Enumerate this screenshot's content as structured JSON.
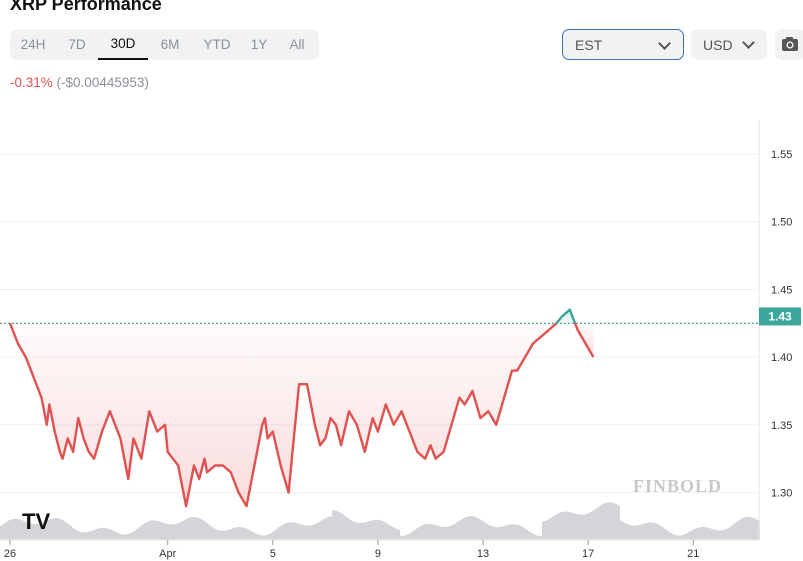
{
  "header": {
    "title": "XRP Performance",
    "ranges": [
      "24H",
      "7D",
      "30D",
      "6M",
      "YTD",
      "1Y",
      "All"
    ],
    "active_range": "30D",
    "timezone": "EST",
    "currency": "USD",
    "change_pct": "-0.31%",
    "change_abs": "(-$0.00445953)"
  },
  "colors": {
    "down": "#e0524f",
    "up": "#3aa79a",
    "volume": "#d4d5d9"
  },
  "icons": [
    "chevron-down-icon",
    "camera-icon"
  ],
  "watermark": "FINBOLD",
  "tv_logo": "TV",
  "chart_data": {
    "type": "line",
    "title": "XRP Performance",
    "xlabel": "",
    "ylabel": "",
    "ylim": [
      1.265,
      1.575
    ],
    "y_ticks": [
      "1.55",
      "1.50",
      "1.45",
      "1.40",
      "1.35",
      "1.30"
    ],
    "y_tick_values": [
      1.55,
      1.5,
      1.45,
      1.4,
      1.35,
      1.3
    ],
    "x_ticks": [
      "26",
      "Apr",
      "5",
      "9",
      "13",
      "17",
      "21"
    ],
    "x_tick_positions": [
      0,
      6,
      10,
      14,
      18,
      22,
      26
    ],
    "x_range": [
      0,
      28.5
    ],
    "baseline": 1.425,
    "current_price_label": "1.43",
    "grid": true,
    "series": [
      {
        "x": [
          0,
          0.3,
          0.6,
          1.0,
          1.2,
          1.4,
          1.5,
          1.7,
          1.9,
          2.0,
          2.2,
          2.4,
          2.6,
          2.8,
          3.0,
          3.2,
          3.5,
          3.8,
          4.2,
          4.4,
          4.5,
          4.7,
          5.0,
          5.3,
          5.6,
          5.9,
          6.0,
          6.2,
          6.4,
          6.5,
          6.7,
          7.0,
          7.2,
          7.4,
          7.5,
          7.8,
          8.1,
          8.4,
          8.7,
          9.0,
          9.3,
          9.6,
          9.7,
          9.8,
          10.0,
          10.3,
          10.6,
          10.8,
          11.0,
          11.3,
          11.6,
          11.8,
          12.0,
          12.2,
          12.4,
          12.6,
          12.9,
          13.2,
          13.5,
          13.8,
          14.0,
          14.3,
          14.6,
          14.9,
          15.2,
          15.5,
          15.8,
          16.0,
          16.2,
          16.5,
          16.8,
          17.1,
          17.3,
          17.6,
          17.9,
          18.2,
          18.5,
          18.8,
          19.1,
          19.3,
          19.6,
          19.9,
          20.2,
          20.5,
          20.8,
          21.0,
          21.3,
          21.6,
          21.9,
          22.2
        ],
        "values": [
          1.425,
          1.41,
          1.4,
          1.38,
          1.37,
          1.35,
          1.365,
          1.345,
          1.33,
          1.325,
          1.34,
          1.33,
          1.355,
          1.34,
          1.33,
          1.325,
          1.345,
          1.36,
          1.34,
          1.32,
          1.31,
          1.34,
          1.325,
          1.36,
          1.345,
          1.35,
          1.33,
          1.325,
          1.32,
          1.31,
          1.29,
          1.32,
          1.31,
          1.325,
          1.315,
          1.32,
          1.32,
          1.315,
          1.3,
          1.29,
          1.32,
          1.35,
          1.355,
          1.34,
          1.345,
          1.32,
          1.3,
          1.34,
          1.38,
          1.38,
          1.35,
          1.335,
          1.34,
          1.355,
          1.35,
          1.335,
          1.36,
          1.35,
          1.33,
          1.355,
          1.345,
          1.365,
          1.35,
          1.36,
          1.345,
          1.33,
          1.325,
          1.335,
          1.325,
          1.33,
          1.35,
          1.37,
          1.365,
          1.375,
          1.355,
          1.36,
          1.35,
          1.37,
          1.39,
          1.39,
          1.4,
          1.41,
          1.415,
          1.42,
          1.425,
          1.43,
          1.435,
          1.42,
          1.41,
          1.4
        ]
      }
    ]
  }
}
